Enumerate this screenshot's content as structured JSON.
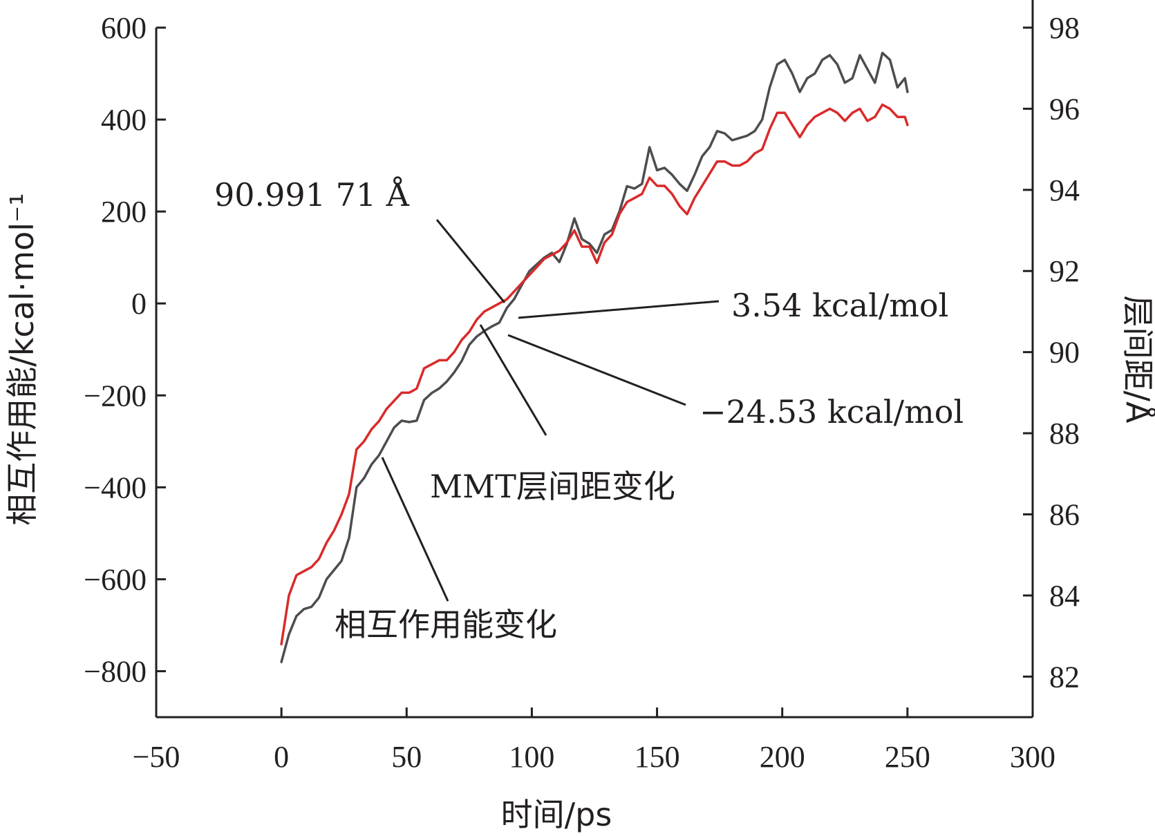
{
  "chart_data": {
    "type": "line",
    "title": "",
    "xlabel": "时间/ps",
    "ylabel_left": "相互作用能/kcal·mol⁻¹",
    "ylabel_right": "层间距/Å",
    "xlim": [
      -50,
      300
    ],
    "ylim_left": [
      -900,
      600
    ],
    "ylim_right": [
      81,
      98
    ],
    "x_ticks": [
      -50,
      0,
      50,
      100,
      150,
      200,
      250,
      300
    ],
    "y_left_ticks": [
      600,
      400,
      200,
      0,
      -200,
      -400,
      -600,
      -800
    ],
    "y_right_ticks": [
      98,
      96,
      94,
      92,
      90,
      88,
      86,
      84,
      82
    ],
    "grid": false,
    "series": [
      {
        "name": "相互作用能变化",
        "axis": "left",
        "color": "#4d4d4f",
        "x": [
          0,
          3,
          6,
          9,
          12,
          15,
          18,
          21,
          24,
          27,
          30,
          33,
          36,
          39,
          42,
          45,
          48,
          51,
          54,
          57,
          60,
          63,
          66,
          69,
          72,
          75,
          78,
          81,
          84,
          87,
          90,
          93,
          96,
          99,
          102,
          105,
          108,
          111,
          114,
          117,
          120,
          123,
          126,
          129,
          132,
          135,
          138,
          141,
          144,
          147,
          150,
          153,
          156,
          159,
          162,
          165,
          168,
          171,
          174,
          177,
          180,
          183,
          186,
          189,
          192,
          195,
          198,
          201,
          204,
          207,
          210,
          213,
          216,
          219,
          222,
          225,
          228,
          231,
          234,
          237,
          240,
          243,
          246,
          249,
          250
        ],
        "y": [
          -780,
          -720,
          -680,
          -665,
          -660,
          -640,
          -600,
          -580,
          -560,
          -510,
          -400,
          -380,
          -350,
          -330,
          -300,
          -270,
          -255,
          -258,
          -255,
          -210,
          -195,
          -185,
          -170,
          -150,
          -125,
          -90,
          -72,
          -60,
          -50,
          -42,
          -10,
          10,
          40,
          70,
          85,
          100,
          110,
          90,
          130,
          185,
          140,
          130,
          110,
          150,
          160,
          200,
          255,
          250,
          260,
          340,
          290,
          295,
          280,
          260,
          245,
          280,
          320,
          340,
          375,
          370,
          355,
          360,
          365,
          375,
          400,
          470,
          520,
          530,
          500,
          460,
          490,
          500,
          530,
          540,
          520,
          480,
          490,
          540,
          510,
          480,
          545,
          530,
          470,
          490,
          460
        ],
        "values_note": ""
      },
      {
        "name": "MMT层间距变化",
        "axis": "right",
        "color": "#d92a2a",
        "x": [
          0,
          3,
          6,
          9,
          12,
          15,
          18,
          21,
          24,
          27,
          30,
          33,
          36,
          39,
          42,
          45,
          48,
          51,
          54,
          57,
          60,
          63,
          66,
          69,
          72,
          75,
          78,
          81,
          84,
          87,
          90,
          93,
          96,
          99,
          102,
          105,
          108,
          111,
          114,
          117,
          120,
          123,
          126,
          129,
          132,
          135,
          138,
          141,
          144,
          147,
          150,
          153,
          156,
          159,
          162,
          165,
          168,
          171,
          174,
          177,
          180,
          183,
          186,
          189,
          192,
          195,
          198,
          201,
          204,
          207,
          210,
          213,
          216,
          219,
          222,
          225,
          228,
          231,
          234,
          237,
          240,
          243,
          246,
          249,
          250
        ],
        "y": [
          82.8,
          84.0,
          84.5,
          84.6,
          84.7,
          84.9,
          85.3,
          85.6,
          86.0,
          86.5,
          87.6,
          87.8,
          88.1,
          88.3,
          88.6,
          88.8,
          89.0,
          89.0,
          89.1,
          89.6,
          89.7,
          89.8,
          89.8,
          90.0,
          90.3,
          90.5,
          90.8,
          91.0,
          91.1,
          91.2,
          91.3,
          91.5,
          91.7,
          91.9,
          92.1,
          92.3,
          92.4,
          92.5,
          92.7,
          93.0,
          92.6,
          92.6,
          92.2,
          92.7,
          92.9,
          93.4,
          93.7,
          93.8,
          93.9,
          94.3,
          94.1,
          94.1,
          93.9,
          93.6,
          93.4,
          93.8,
          94.1,
          94.4,
          94.7,
          94.7,
          94.6,
          94.6,
          94.7,
          94.9,
          95.0,
          95.5,
          95.9,
          95.9,
          95.6,
          95.3,
          95.6,
          95.8,
          95.9,
          96.0,
          95.9,
          95.7,
          95.9,
          96.0,
          95.7,
          95.8,
          96.1,
          96.0,
          95.8,
          95.8,
          95.6
        ],
        "values_note": ""
      }
    ],
    "annotations": [
      {
        "text": "90.991 71 Å",
        "x": 90,
        "y_right": 91.0,
        "series": "MMT层间距变化"
      },
      {
        "text": "3.54 kcal/mol",
        "x": 95,
        "y_left": 3.54,
        "series": "相互作用能变化"
      },
      {
        "text": "−24.53 kcal/mol",
        "x": 90,
        "y_left": -24.53,
        "series": "相互作用能变化"
      },
      {
        "text": "MMT层间距变化",
        "x": 80,
        "y_right": 90.5,
        "series": "MMT层间距变化"
      },
      {
        "text": "相互作用能变化",
        "x": 41,
        "y_left": -310,
        "series": "相互作用能变化"
      }
    ],
    "legend": "none"
  }
}
